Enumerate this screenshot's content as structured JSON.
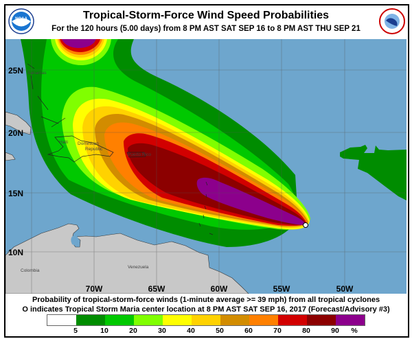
{
  "header": {
    "title": "Tropical-Storm-Force Wind Speed Probabilities",
    "subtitle": "For the 120 hours (5.00 days) from 8 PM AST SAT SEP 16 to 8 PM AST THU SEP 21",
    "left_logo": "NOAA",
    "right_logo": "NATIONAL WEATHER SERVICE"
  },
  "map": {
    "lat_labels": [
      "25N",
      "20N",
      "15N",
      "10N"
    ],
    "lon_labels": [
      "70W",
      "65W",
      "60W",
      "55W",
      "50W"
    ],
    "places": {
      "bahamas": "Bahamas",
      "haiti": "Haiti",
      "dominican1": "Dominican",
      "dominican2": "Republic",
      "puerto_rico": "Puerto Rico",
      "venezuela": "Venezuela",
      "colombia": "Colombia"
    },
    "storm_center_icon": "open-circle-marker",
    "ocean_color": "#6EA6CD",
    "land_color": "#C8C8C8"
  },
  "legend": {
    "line1": "Probability of tropical-storm-force winds (1-minute average >= 39 mph) from all tropical cyclones",
    "line2": "O indicates Tropical Storm Maria center location at 8 PM AST SAT SEP 16, 2017 (Forecast/Advisory #3)",
    "colors": [
      "#FFFFFF",
      "#008C00",
      "#00C800",
      "#80FF00",
      "#FFFF00",
      "#FFD200",
      "#D28C00",
      "#FF8000",
      "#D20000",
      "#8C0000",
      "#8C008C"
    ],
    "ticks": [
      "5",
      "10",
      "20",
      "30",
      "40",
      "50",
      "60",
      "70",
      "80",
      "90",
      "%"
    ]
  }
}
